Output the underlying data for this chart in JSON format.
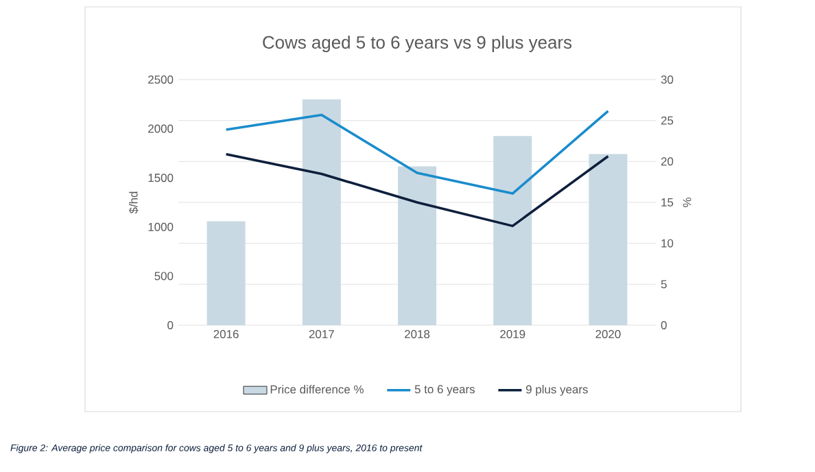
{
  "chart_data": {
    "type": "line",
    "title": "Cows aged 5 to 6 years vs 9 plus years",
    "categories": [
      "2016",
      "2017",
      "2018",
      "2019",
      "2020"
    ],
    "series": [
      {
        "name": "Price difference %",
        "type": "bar",
        "axis": "y2",
        "color": "#c9d9e3",
        "values": [
          12.7,
          27.6,
          19.4,
          23.1,
          20.9
        ]
      },
      {
        "name": "5 to 6 years",
        "color": "#1a8ccc",
        "values": [
          1990,
          2140,
          1550,
          1340,
          2180
        ]
      },
      {
        "name": "9 plus years",
        "color": "#0d1f3c",
        "values": [
          1740,
          1540,
          1250,
          1010,
          1720
        ]
      }
    ],
    "ylabel": "$/hd",
    "y2label": "%",
    "ylim": [
      0,
      2500
    ],
    "yticks": [
      0,
      500,
      1000,
      1500,
      2000,
      2500
    ],
    "y2lim": [
      0,
      30
    ],
    "y2ticks": [
      0,
      5,
      10,
      15,
      20,
      25,
      30
    ],
    "grid": "y",
    "legend": "bottom",
    "marker": "none",
    "line_style": "solid",
    "annotations": [
      "Figure 2: Average price comparison for cows aged 5 to 6 years and 9 plus years, 2016 to present"
    ]
  }
}
